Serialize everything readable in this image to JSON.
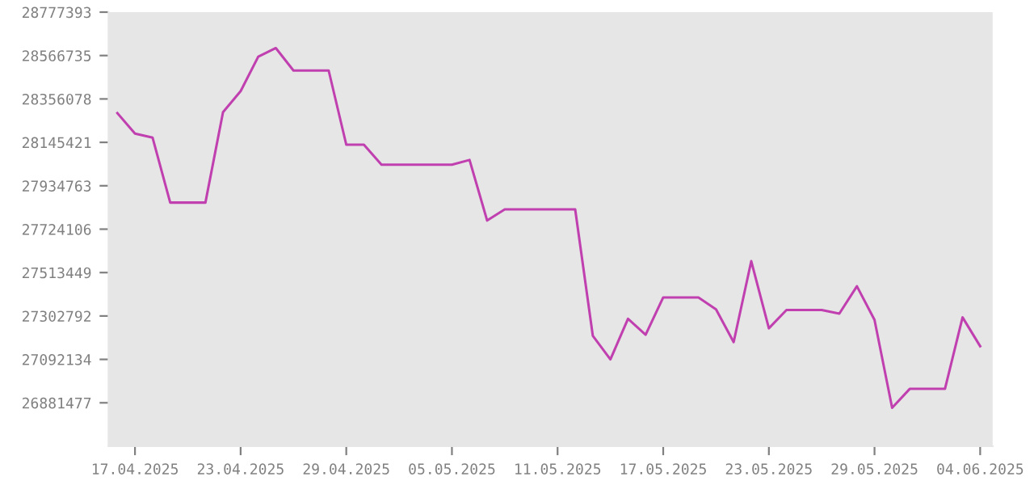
{
  "chart_data": {
    "type": "line",
    "x": [
      "2025-04-16",
      "2025-04-17",
      "2025-04-18",
      "2025-04-19",
      "2025-04-20",
      "2025-04-21",
      "2025-04-22",
      "2025-04-23",
      "2025-04-24",
      "2025-04-25",
      "2025-04-26",
      "2025-04-27",
      "2025-04-28",
      "2025-04-29",
      "2025-04-30",
      "2025-05-01",
      "2025-05-02",
      "2025-05-03",
      "2025-05-04",
      "2025-05-05",
      "2025-05-06",
      "2025-05-07",
      "2025-05-08",
      "2025-05-09",
      "2025-05-10",
      "2025-05-11",
      "2025-05-12",
      "2025-05-13",
      "2025-05-14",
      "2025-05-15",
      "2025-05-16",
      "2025-05-17",
      "2025-05-18",
      "2025-05-19",
      "2025-05-20",
      "2025-05-21",
      "2025-05-22",
      "2025-05-23",
      "2025-05-24",
      "2025-05-25",
      "2025-05-26",
      "2025-05-27",
      "2025-05-28",
      "2025-05-29",
      "2025-05-30",
      "2025-05-31",
      "2025-06-01",
      "2025-06-02",
      "2025-06-03",
      "2025-06-04"
    ],
    "series": [
      {
        "color": "#c040b0",
        "values": [
          28287000,
          28188000,
          28168000,
          27853000,
          27853000,
          27853000,
          28292000,
          28394000,
          28561000,
          28603000,
          28494000,
          28494000,
          28494000,
          28134000,
          28134000,
          28037000,
          28037000,
          28037000,
          28037000,
          28037000,
          28060000,
          27766000,
          27820000,
          27820000,
          27820000,
          27820000,
          27820000,
          27207000,
          27092000,
          27289000,
          27212000,
          27393000,
          27393000,
          27393000,
          27335000,
          27176000,
          27569000,
          27243000,
          27332000,
          27332000,
          27332000,
          27314000,
          27447000,
          27284000,
          26857000,
          26949000,
          26949000,
          26949000,
          27296000,
          27156000
        ]
      }
    ],
    "xlim": [
      "2025-04-15T12:00",
      "2025-06-04T17:00"
    ],
    "ylim": [
      26670820,
      28777393
    ],
    "yticks": [
      26881477,
      27092134,
      27302792,
      27513449,
      27724106,
      27934763,
      28145421,
      28356078,
      28566735,
      28777393
    ],
    "xticks": [
      {
        "value": "2025-04-17",
        "label": "17.04.2025"
      },
      {
        "value": "2025-04-23",
        "label": "23.04.2025"
      },
      {
        "value": "2025-04-29",
        "label": "29.04.2025"
      },
      {
        "value": "2025-05-05",
        "label": "05.05.2025"
      },
      {
        "value": "2025-05-11",
        "label": "11.05.2025"
      },
      {
        "value": "2025-05-17",
        "label": "17.05.2025"
      },
      {
        "value": "2025-05-23",
        "label": "23.05.2025"
      },
      {
        "value": "2025-05-29",
        "label": "29.05.2025"
      },
      {
        "value": "2025-06-04",
        "label": "04.06.2025"
      }
    ],
    "grid": false,
    "marker": "none",
    "line_style": "solid"
  }
}
